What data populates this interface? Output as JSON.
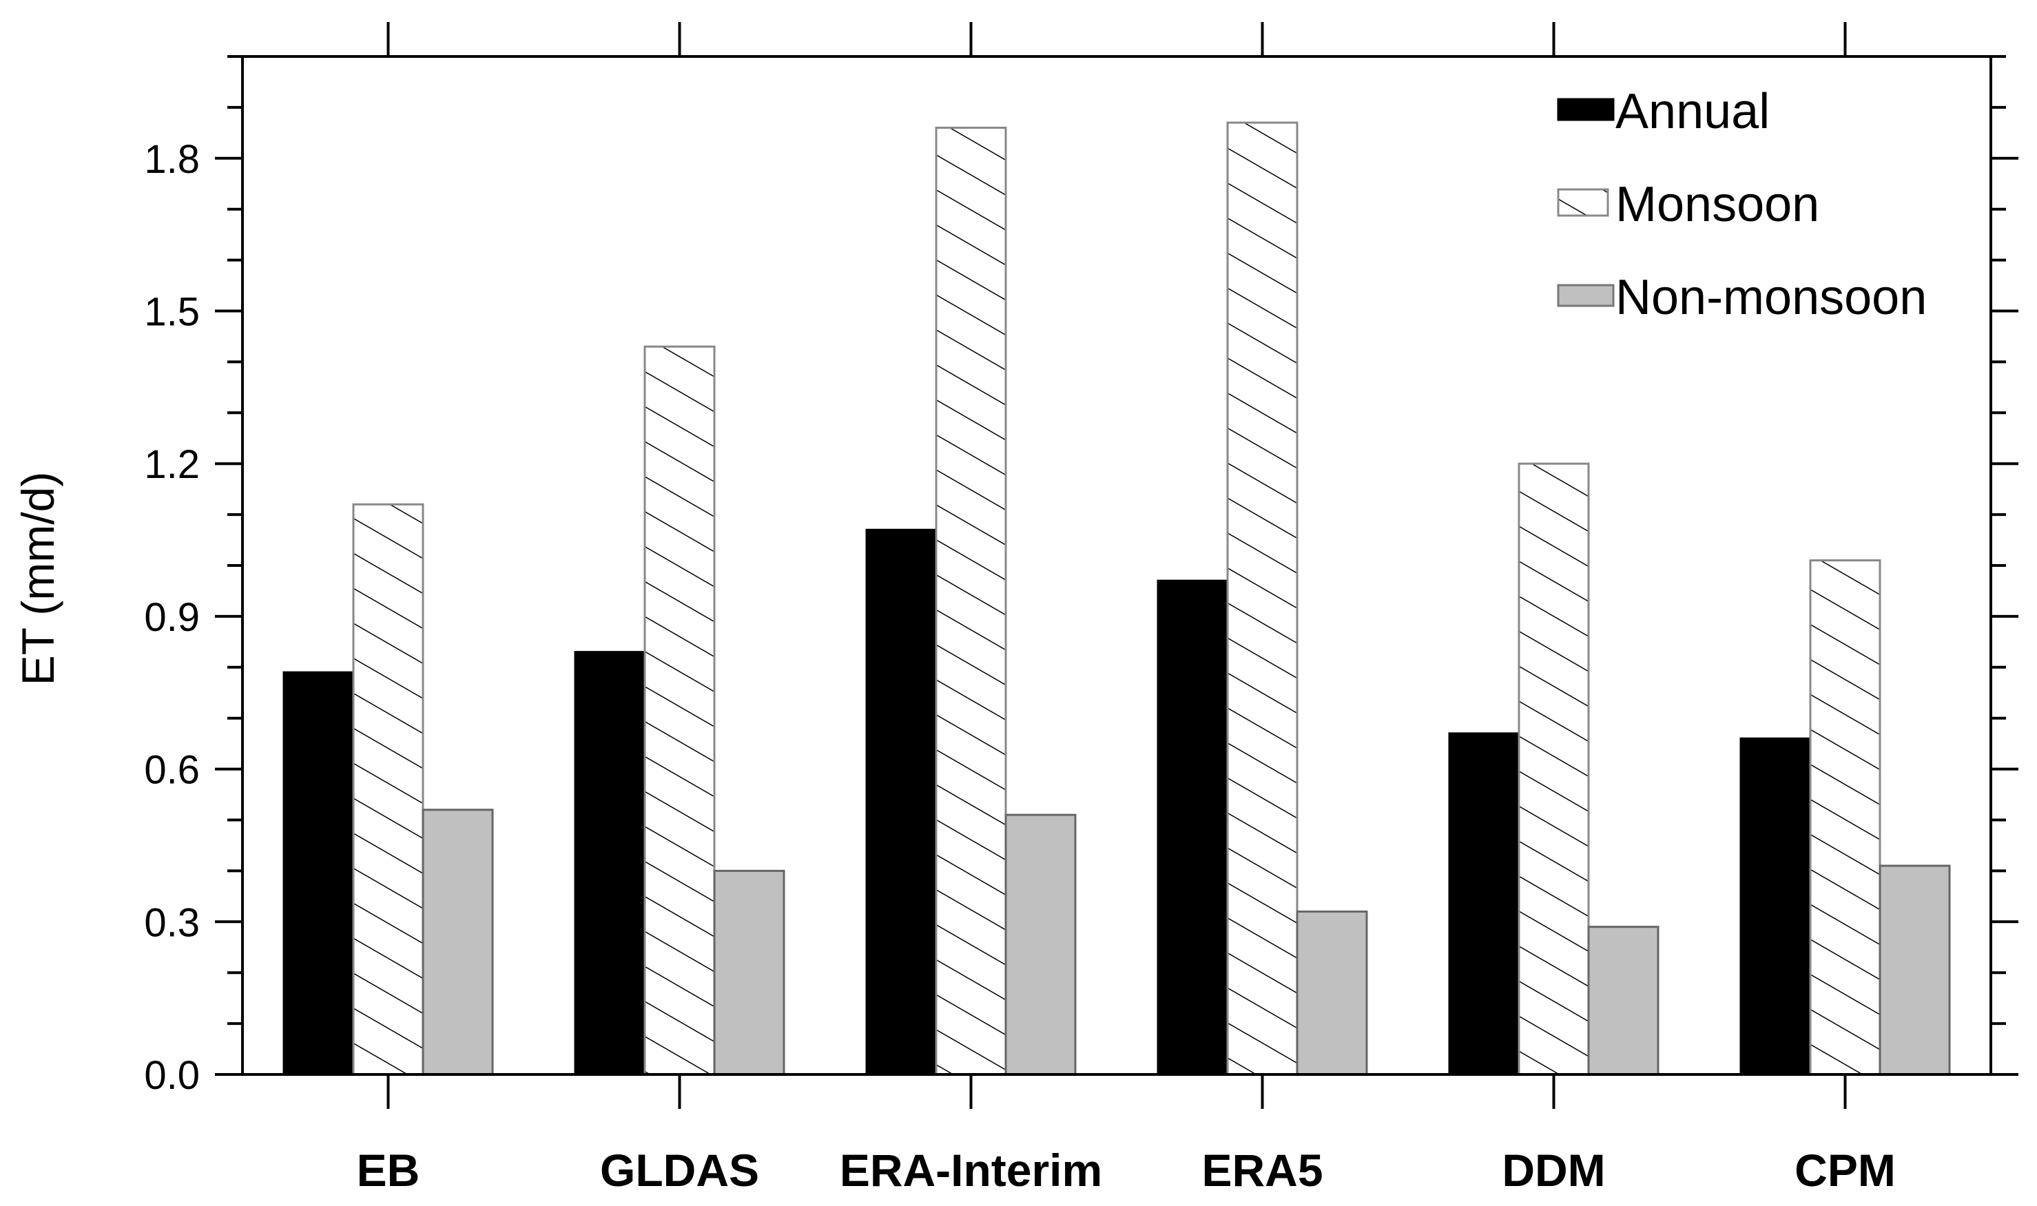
{
  "chart_data": {
    "type": "bar",
    "title": "",
    "xlabel": "",
    "ylabel": "ET (mm/d)",
    "ylim": [
      0,
      2.0
    ],
    "yticks": [
      "0.0",
      "0.3",
      "0.6",
      "0.9",
      "1.2",
      "1.5",
      "1.8"
    ],
    "categories": [
      "EB",
      "GLDAS",
      "ERA-Interim",
      "ERA5",
      "DDM",
      "CPM"
    ],
    "series": [
      {
        "name": "Annual",
        "fill": "solid",
        "color": "#000000",
        "values": [
          0.79,
          0.83,
          1.07,
          0.97,
          0.67,
          0.66
        ]
      },
      {
        "name": "Monsoon",
        "fill": "hatched",
        "color": "#ffffff",
        "values": [
          1.12,
          1.43,
          1.86,
          1.87,
          1.2,
          1.01
        ]
      },
      {
        "name": "Non-monsoon",
        "fill": "solid",
        "color": "#c0c0c0",
        "values": [
          0.52,
          0.4,
          0.51,
          0.32,
          0.29,
          0.41
        ]
      }
    ],
    "legend": "top-right",
    "grid": false
  }
}
